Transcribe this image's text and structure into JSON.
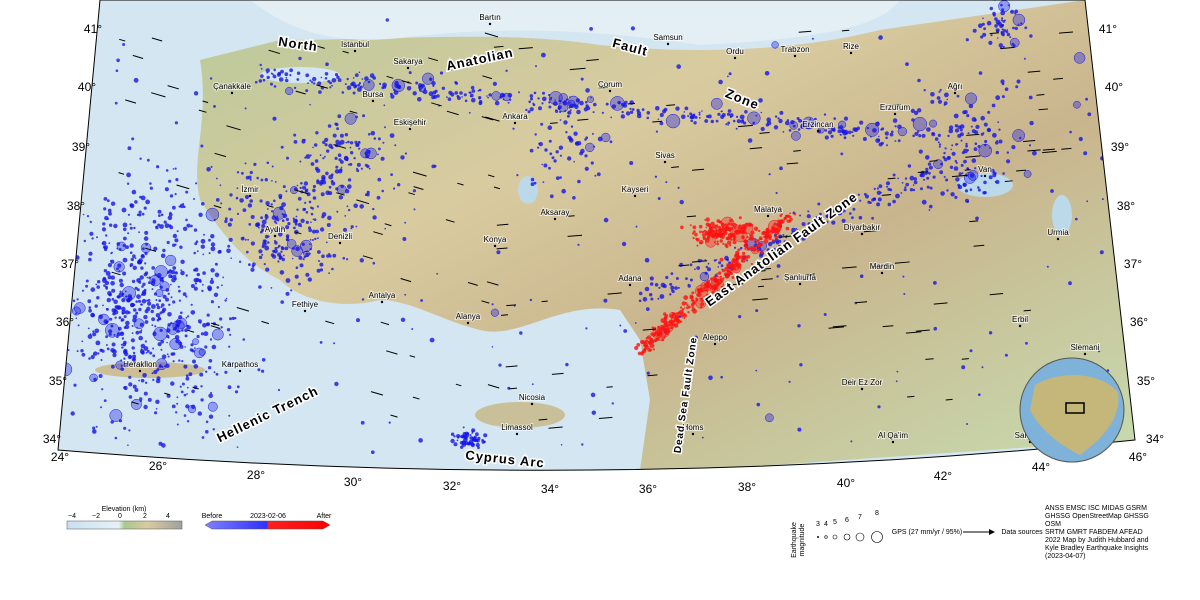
{
  "map": {
    "lat_labels_left": [
      "41°",
      "40°",
      "39°",
      "38°",
      "37°",
      "36°",
      "35°",
      "34°"
    ],
    "lat_labels_right": [
      "41°",
      "40°",
      "39°",
      "38°",
      "37°",
      "36°",
      "35°",
      "34°"
    ],
    "lon_labels": [
      "24°",
      "26°",
      "28°",
      "30°",
      "32°",
      "34°",
      "36°",
      "38°",
      "40°",
      "42°",
      "44°",
      "46°"
    ],
    "faults": [
      "North",
      "Anatolian",
      "Fault",
      "Zone",
      "East Anatolian Fault Zone",
      "Dead Sea Fault Zone",
      "Hellenic Trench",
      "Cyprus Arc"
    ],
    "places": [
      "Bartın",
      "Samsun",
      "Ordu",
      "Trabzon",
      "Rize",
      "Istanbul",
      "Sakarya",
      "Bursa",
      "Çanakkale",
      "Eskişehir",
      "Ankara",
      "Çorum",
      "Sivas",
      "Erzincan",
      "Erzurum",
      "Ağrı",
      "Kayseri",
      "Aksaray",
      "Konya",
      "İzmir",
      "Aydın",
      "Denizli",
      "Antalya",
      "Fethiye",
      "Alanya",
      "Adana",
      "Malatya",
      "Diyarbakır",
      "Van",
      "Urmia",
      "Mardin",
      "Şanlıurfa",
      "Aleppo",
      "Erbil",
      "Slemani",
      "Deir Ez Zor",
      "Al Qa'im",
      "Samarra",
      "Homs",
      "Nicosia",
      "Limassol",
      "Heraklion",
      "Karpathos"
    ]
  },
  "legend": {
    "elevation_title": "Elevation (km)",
    "elevation_ticks": [
      "−4",
      "−2",
      "0",
      "2",
      "4"
    ],
    "time_labels": [
      "Before",
      "2023-02-06",
      "After"
    ],
    "magnitude_title": [
      "Earthquake",
      "magnitude"
    ],
    "magnitudes": [
      "3",
      "4",
      "5",
      "6",
      "7",
      "8"
    ],
    "gps": "GPS (27 mm/yr / 95%)",
    "sources_title": "Data sources",
    "sources": [
      "ANSS EMSC ISC MIDAS GSRM",
      "GHSSG OpenStreetMap GHSSG",
      "OSM",
      "SRTM GMRT FABDEM AFEAD",
      "2022 Map by Judith Hubbard and",
      "Kyle Bradley Earthquake Insights",
      "(2023-04-07)"
    ]
  }
}
